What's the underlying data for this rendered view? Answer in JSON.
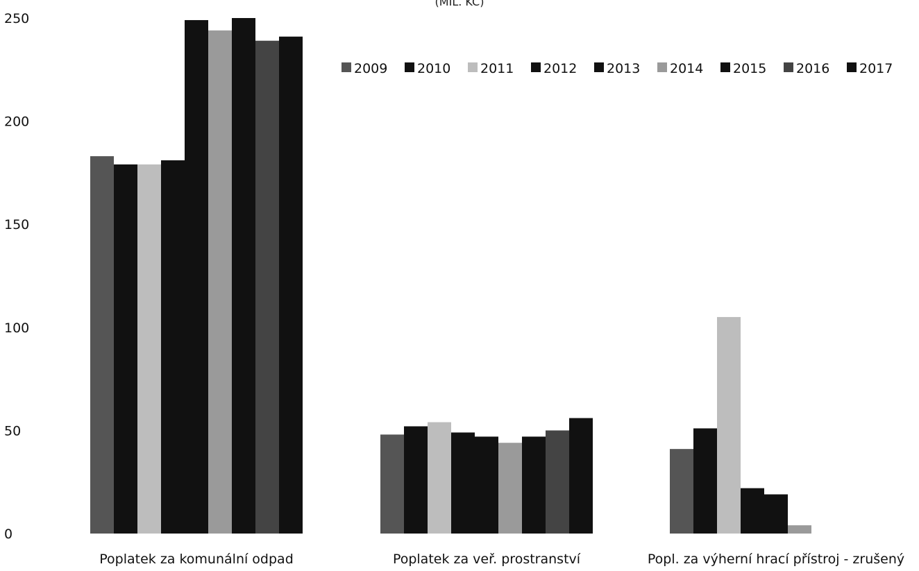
{
  "chart_data": {
    "type": "bar",
    "unit_label": "(MIL. KČ)",
    "categories": [
      "Poplatek za komunální odpad",
      "Poplatek za veř. prostranství",
      "Popl. za výherní hrací přístroj - zrušený"
    ],
    "ylim": [
      0,
      250
    ],
    "yticks": [
      0,
      50,
      100,
      150,
      200,
      250
    ],
    "grid": false,
    "legend_position": "top-right",
    "series": [
      {
        "name": "2009",
        "color": "#555555",
        "values": [
          183,
          48,
          41
        ]
      },
      {
        "name": "2010",
        "color": "#111111",
        "values": [
          179,
          52,
          51
        ]
      },
      {
        "name": "2011",
        "color": "#bdbdbd",
        "values": [
          179,
          54,
          105
        ]
      },
      {
        "name": "2012",
        "color": "#111111",
        "values": [
          181,
          49,
          22
        ]
      },
      {
        "name": "2013",
        "color": "#111111",
        "values": [
          249,
          47,
          19
        ]
      },
      {
        "name": "2014",
        "color": "#9a9a9a",
        "values": [
          244,
          44,
          4
        ]
      },
      {
        "name": "2015",
        "color": "#111111",
        "values": [
          250,
          47,
          0
        ]
      },
      {
        "name": "2016",
        "color": "#444444",
        "values": [
          239,
          50,
          0
        ]
      },
      {
        "name": "2017",
        "color": "#111111",
        "values": [
          241,
          56,
          0
        ]
      }
    ]
  }
}
